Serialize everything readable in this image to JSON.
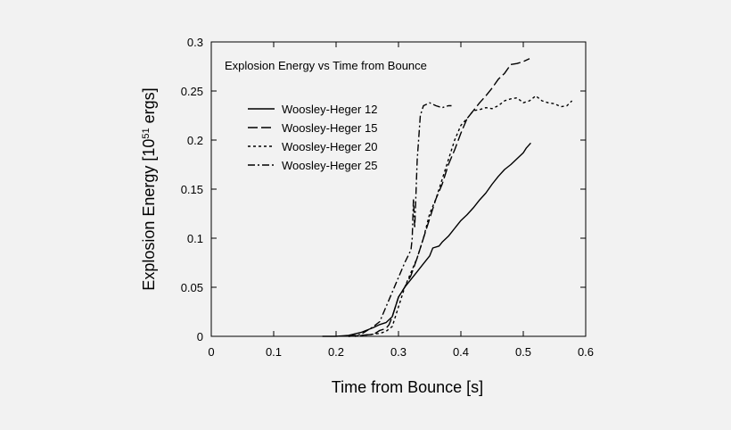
{
  "chart_data": {
    "type": "line",
    "title": "Explosion Energy vs Time from Bounce",
    "xlabel": "Time from Bounce [s]",
    "ylabel_prefix": "Explosion Energy [10",
    "ylabel_exp": "51",
    "ylabel_suffix": " ergs]",
    "xlim": [
      0,
      0.6
    ],
    "ylim": [
      0,
      0.3
    ],
    "xticks": [
      "0",
      "0.1",
      "0.2",
      "0.3",
      "0.4",
      "0.5",
      "0.6"
    ],
    "yticks": [
      "0",
      "0.05",
      "0.1",
      "0.15",
      "0.2",
      "0.25",
      "0.3"
    ],
    "grid": false,
    "legend_position": "upper-left",
    "series": [
      {
        "name": "Woosley-Heger 12",
        "dash": "solid",
        "points": [
          [
            0.178,
            0
          ],
          [
            0.2,
            0
          ],
          [
            0.22,
            0.001
          ],
          [
            0.24,
            0.004
          ],
          [
            0.26,
            0.009
          ],
          [
            0.27,
            0.012
          ],
          [
            0.28,
            0.014
          ],
          [
            0.29,
            0.02
          ],
          [
            0.295,
            0.03
          ],
          [
            0.3,
            0.04
          ],
          [
            0.31,
            0.05
          ],
          [
            0.32,
            0.058
          ],
          [
            0.33,
            0.066
          ],
          [
            0.34,
            0.074
          ],
          [
            0.35,
            0.082
          ],
          [
            0.355,
            0.09
          ],
          [
            0.365,
            0.092
          ],
          [
            0.37,
            0.096
          ],
          [
            0.38,
            0.102
          ],
          [
            0.39,
            0.11
          ],
          [
            0.4,
            0.118
          ],
          [
            0.41,
            0.124
          ],
          [
            0.42,
            0.131
          ],
          [
            0.43,
            0.139
          ],
          [
            0.44,
            0.146
          ],
          [
            0.45,
            0.155
          ],
          [
            0.46,
            0.163
          ],
          [
            0.47,
            0.17
          ],
          [
            0.48,
            0.175
          ],
          [
            0.49,
            0.181
          ],
          [
            0.5,
            0.187
          ],
          [
            0.505,
            0.192
          ],
          [
            0.512,
            0.197
          ]
        ]
      },
      {
        "name": "Woosley-Heger 15",
        "dash": "long-dash",
        "points": [
          [
            0.22,
            0
          ],
          [
            0.26,
            0.002
          ],
          [
            0.27,
            0.006
          ],
          [
            0.28,
            0.008
          ],
          [
            0.285,
            0.012
          ],
          [
            0.29,
            0.02
          ],
          [
            0.3,
            0.04
          ],
          [
            0.31,
            0.05
          ],
          [
            0.32,
            0.062
          ],
          [
            0.33,
            0.08
          ],
          [
            0.34,
            0.1
          ],
          [
            0.35,
            0.12
          ],
          [
            0.36,
            0.14
          ],
          [
            0.37,
            0.155
          ],
          [
            0.38,
            0.175
          ],
          [
            0.39,
            0.19
          ],
          [
            0.4,
            0.207
          ],
          [
            0.41,
            0.222
          ],
          [
            0.42,
            0.23
          ],
          [
            0.43,
            0.238
          ],
          [
            0.44,
            0.245
          ],
          [
            0.45,
            0.253
          ],
          [
            0.46,
            0.262
          ],
          [
            0.47,
            0.268
          ],
          [
            0.48,
            0.277
          ],
          [
            0.49,
            0.278
          ],
          [
            0.5,
            0.28
          ],
          [
            0.51,
            0.283
          ]
        ]
      },
      {
        "name": "Woosley-Heger 20",
        "dash": "short-dash",
        "points": [
          [
            0.23,
            0
          ],
          [
            0.27,
            0.003
          ],
          [
            0.28,
            0.005
          ],
          [
            0.29,
            0.01
          ],
          [
            0.3,
            0.03
          ],
          [
            0.31,
            0.05
          ],
          [
            0.32,
            0.065
          ],
          [
            0.33,
            0.08
          ],
          [
            0.34,
            0.1
          ],
          [
            0.35,
            0.125
          ],
          [
            0.36,
            0.14
          ],
          [
            0.37,
            0.16
          ],
          [
            0.38,
            0.18
          ],
          [
            0.39,
            0.2
          ],
          [
            0.4,
            0.215
          ],
          [
            0.41,
            0.222
          ],
          [
            0.42,
            0.23
          ],
          [
            0.43,
            0.231
          ],
          [
            0.44,
            0.233
          ],
          [
            0.45,
            0.232
          ],
          [
            0.46,
            0.235
          ],
          [
            0.47,
            0.24
          ],
          [
            0.48,
            0.242
          ],
          [
            0.49,
            0.243
          ],
          [
            0.5,
            0.238
          ],
          [
            0.51,
            0.24
          ],
          [
            0.52,
            0.245
          ],
          [
            0.53,
            0.24
          ],
          [
            0.54,
            0.238
          ],
          [
            0.55,
            0.237
          ],
          [
            0.56,
            0.234
          ],
          [
            0.57,
            0.235
          ],
          [
            0.578,
            0.24
          ]
        ]
      },
      {
        "name": "Woosley-Heger 25",
        "dash": "dash-dot",
        "points": [
          [
            0.22,
            0
          ],
          [
            0.24,
            0.002
          ],
          [
            0.26,
            0.01
          ],
          [
            0.27,
            0.015
          ],
          [
            0.28,
            0.03
          ],
          [
            0.29,
            0.045
          ],
          [
            0.3,
            0.06
          ],
          [
            0.31,
            0.075
          ],
          [
            0.32,
            0.088
          ],
          [
            0.322,
            0.1
          ],
          [
            0.324,
            0.14
          ],
          [
            0.326,
            0.11
          ],
          [
            0.33,
            0.18
          ],
          [
            0.335,
            0.225
          ],
          [
            0.34,
            0.235
          ],
          [
            0.35,
            0.238
          ],
          [
            0.36,
            0.235
          ],
          [
            0.37,
            0.233
          ],
          [
            0.38,
            0.235
          ],
          [
            0.385,
            0.235
          ]
        ]
      }
    ]
  }
}
